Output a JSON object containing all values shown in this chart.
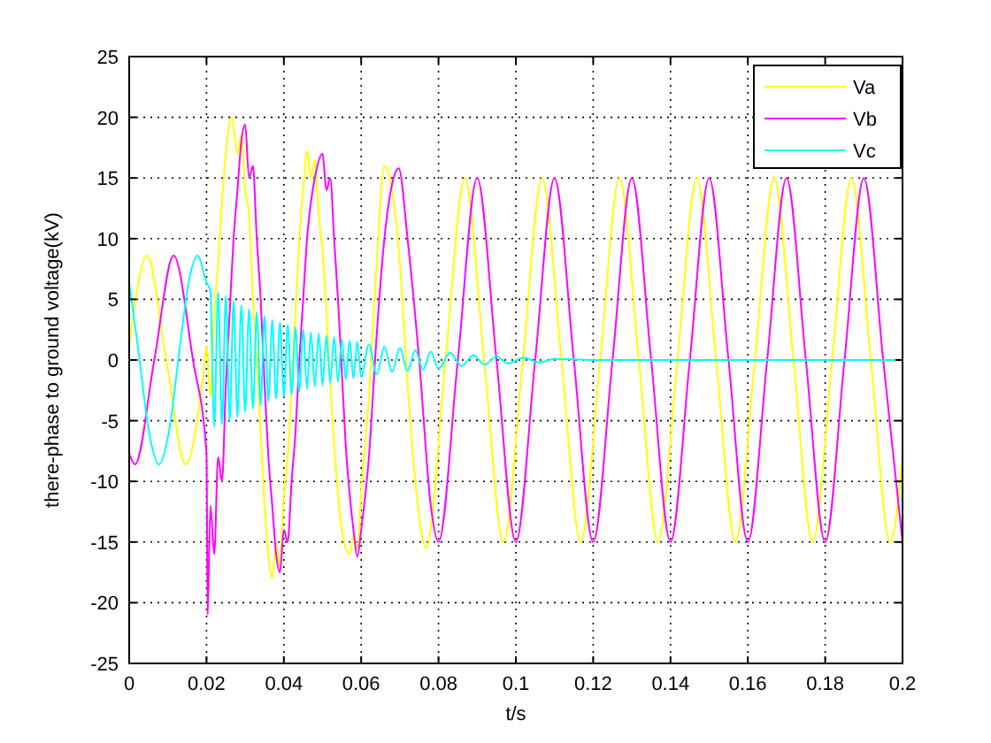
{
  "chart_data": {
    "type": "line",
    "xlabel": "t/s",
    "ylabel": "there-phase to ground voltage(kV)",
    "xlim": [
      0,
      0.2
    ],
    "xticks": [
      0,
      0.02,
      0.04,
      0.06,
      0.08,
      0.1,
      0.12,
      0.14,
      0.16,
      0.18,
      0.2
    ],
    "ylim": [
      -25,
      25
    ],
    "yticks": [
      -25,
      -20,
      -15,
      -10,
      -5,
      0,
      5,
      10,
      15,
      20,
      25
    ],
    "grid": true,
    "legend": "top right",
    "marker": "none",
    "line_style": "solid",
    "series": [
      {
        "name": "Va",
        "color": "#ffff00",
        "x": [
          0,
          0.0046,
          0.0096,
          0.0146,
          0.0196,
          0.02,
          0.021,
          0.022,
          0.023,
          0.024,
          0.025,
          0.0265,
          0.028,
          0.029,
          0.03,
          0.031,
          0.032,
          0.033,
          0.034,
          0.035,
          0.036,
          0.037,
          0.038,
          0.039,
          0.04,
          0.041,
          0.042,
          0.043,
          0.044,
          0.045,
          0.046,
          0.047,
          0.048,
          0.049,
          0.05,
          0.051,
          0.052,
          0.053,
          0.054,
          0.055,
          0.057,
          0.058,
          0.059,
          0.06,
          0.062,
          0.064,
          0.066,
          0.068,
          0.07,
          0.072,
          0.074,
          0.0768,
          0.0818,
          0.0868,
          0.0918,
          0.0968,
          0.1018,
          0.1068,
          0.1118,
          0.1168,
          0.1218,
          0.1268,
          0.1318,
          0.1368,
          0.1418,
          0.1468,
          0.1518,
          0.1568,
          0.1618,
          0.1668,
          0.1718,
          0.1768,
          0.1818,
          0.1868,
          0.1918,
          0.1968,
          0.2
        ],
        "values": [
          1.1,
          8.6,
          0,
          -8.6,
          0,
          1.1,
          -3,
          4,
          8,
          13,
          17,
          20,
          17,
          18.5,
          14,
          12,
          5,
          0,
          -6,
          -12,
          -16,
          -18,
          -15,
          -17,
          -11,
          -8,
          -2,
          4,
          10,
          14,
          17.2,
          15,
          16.5,
          12,
          9,
          4,
          -2,
          -7,
          -11,
          -14,
          -16,
          -14.5,
          -15.5,
          -11,
          -3,
          8,
          16,
          14,
          8,
          -2,
          -10,
          -15.5,
          0,
          15,
          0,
          -15,
          0,
          15,
          0,
          -15,
          0,
          15,
          0,
          -15,
          0,
          15,
          0,
          -15,
          0,
          15,
          0,
          -15,
          0,
          15,
          0,
          -15,
          -8
        ]
      },
      {
        "name": "Vb",
        "color": "#ff00ff",
        "x": [
          0,
          0.0015,
          0.0065,
          0.0115,
          0.0165,
          0.02,
          0.0203,
          0.021,
          0.022,
          0.023,
          0.024,
          0.025,
          0.026,
          0.027,
          0.028,
          0.029,
          0.03,
          0.031,
          0.032,
          0.033,
          0.034,
          0.035,
          0.036,
          0.037,
          0.038,
          0.039,
          0.04,
          0.041,
          0.042,
          0.043,
          0.044,
          0.045,
          0.046,
          0.047,
          0.048,
          0.05,
          0.051,
          0.052,
          0.053,
          0.054,
          0.055,
          0.056,
          0.057,
          0.058,
          0.059,
          0.06,
          0.062,
          0.064,
          0.066,
          0.068,
          0.0697,
          0.072,
          0.075,
          0.078,
          0.08,
          0.085,
          0.09,
          0.095,
          0.1,
          0.105,
          0.11,
          0.115,
          0.12,
          0.125,
          0.13,
          0.135,
          0.14,
          0.145,
          0.15,
          0.155,
          0.16,
          0.165,
          0.17,
          0.175,
          0.18,
          0.185,
          0.19,
          0.195,
          0.2
        ],
        "values": [
          -7.7,
          -8.6,
          0,
          8.6,
          0,
          -7.7,
          -21,
          -12,
          -16,
          -8,
          -10,
          -2,
          4,
          10,
          14,
          18,
          19.4,
          15,
          16,
          10,
          5,
          -2,
          -8,
          -12,
          -16,
          -17.5,
          -14,
          -15,
          -10,
          -6,
          0,
          5,
          10,
          13,
          15,
          17,
          14,
          15,
          10,
          5,
          -1,
          -7,
          -11,
          -14,
          -16.2,
          -14,
          -8,
          2,
          10,
          14.5,
          15.8,
          10,
          0,
          -12,
          -15,
          0,
          15,
          0,
          -15,
          0,
          15,
          0,
          -15,
          0,
          15,
          0,
          -15,
          0,
          15,
          0,
          -15,
          0,
          15,
          0,
          -15,
          0,
          15,
          0,
          -15
        ]
      },
      {
        "name": "Vc",
        "color": "#00ffff",
        "x": [
          0,
          0.0025,
          0.005,
          0.0077,
          0.0105,
          0.013,
          0.0155,
          0.0177,
          0.02,
          0.021,
          0.022,
          0.023,
          0.024,
          0.025,
          0.026,
          0.027,
          0.028,
          0.029,
          0.03,
          0.031,
          0.032,
          0.033,
          0.034,
          0.035,
          0.036,
          0.037,
          0.038,
          0.039,
          0.04,
          0.041,
          0.042,
          0.043,
          0.044,
          0.045,
          0.046,
          0.047,
          0.048,
          0.049,
          0.05,
          0.051,
          0.052,
          0.053,
          0.054,
          0.055,
          0.056,
          0.057,
          0.058,
          0.059,
          0.06,
          0.062,
          0.064,
          0.066,
          0.068,
          0.07,
          0.072,
          0.074,
          0.076,
          0.078,
          0.08,
          0.083,
          0.086,
          0.089,
          0.092,
          0.095,
          0.098,
          0.102,
          0.106,
          0.11,
          0.12,
          0.2
        ],
        "values": [
          6.4,
          0.5,
          -5.7,
          -8.6,
          -5.5,
          0.8,
          6.6,
          8.6,
          6.4,
          5.7,
          -5.5,
          5.6,
          -5.3,
          5.3,
          -5,
          4.9,
          -4.7,
          4.5,
          -4.3,
          4.2,
          -4,
          3.9,
          -3.7,
          3.6,
          -3.4,
          3.3,
          -3.2,
          3.1,
          -3,
          2.9,
          -2.8,
          2.7,
          -2.6,
          2.5,
          -2.4,
          2.3,
          -2.2,
          2.2,
          -2.1,
          2,
          -1.9,
          1.9,
          -1.8,
          1.7,
          -1.6,
          1.6,
          -1.5,
          1.5,
          -1.4,
          1.3,
          -1.2,
          1.1,
          -1,
          1,
          -0.9,
          0.8,
          -0.8,
          0.7,
          -0.7,
          0.6,
          -0.5,
          0.4,
          -0.4,
          0.3,
          -0.3,
          0.2,
          -0.2,
          0.1,
          0,
          0
        ]
      }
    ]
  }
}
